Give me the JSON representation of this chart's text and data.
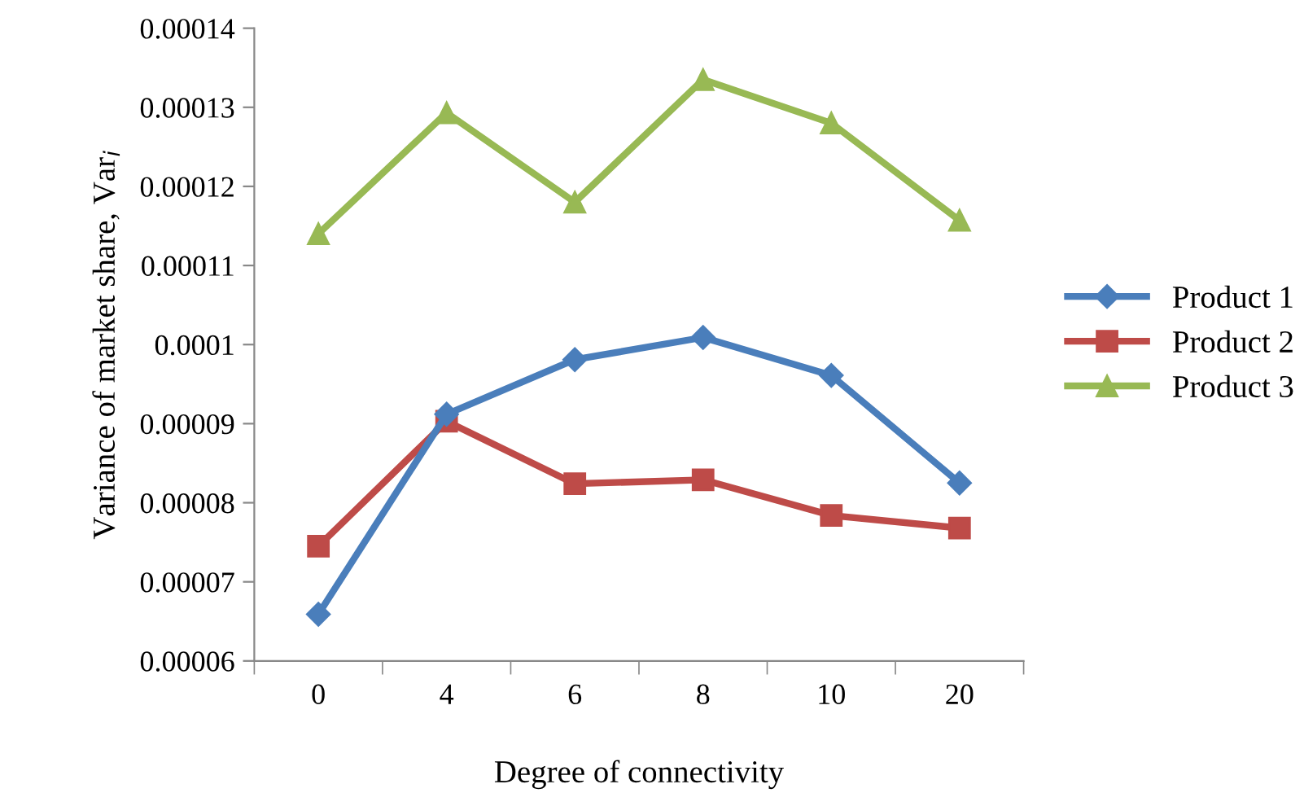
{
  "chart_data": {
    "type": "line",
    "xlabel": "Degree of connectivity",
    "ylabel": "Variance of market share, Var$_{i}$",
    "categories": [
      "0",
      "4",
      "6",
      "8",
      "10",
      "20"
    ],
    "series": [
      {
        "name": "Product 1",
        "color": "#4a7ebb",
        "marker": "diamond",
        "values": [
          6.59e-05,
          9.12e-05,
          9.81e-05,
          0.0001009,
          9.61e-05,
          8.25e-05
        ]
      },
      {
        "name": "Product 2",
        "color": "#be4b48",
        "marker": "square",
        "values": [
          7.45e-05,
          9.03e-05,
          8.24e-05,
          8.29e-05,
          7.84e-05,
          7.68e-05
        ]
      },
      {
        "name": "Product 3",
        "color": "#98b954",
        "marker": "triangle",
        "values": [
          0.000114,
          0.0001293,
          0.000118,
          0.0001335,
          0.000128,
          0.0001157
        ]
      }
    ],
    "ylim": [
      6e-05,
      0.00014
    ],
    "yticks": [
      {
        "value": 6e-05,
        "label": "0.00006"
      },
      {
        "value": 7e-05,
        "label": "0.00007"
      },
      {
        "value": 8e-05,
        "label": "0.00008"
      },
      {
        "value": 9e-05,
        "label": "0.00009"
      },
      {
        "value": 0.0001,
        "label": "0.0001"
      },
      {
        "value": 0.00011,
        "label": "0.00011"
      },
      {
        "value": 0.00012,
        "label": "0.00012"
      },
      {
        "value": 0.00013,
        "label": "0.00013"
      },
      {
        "value": 0.00014,
        "label": "0.00014"
      }
    ],
    "grid": false,
    "legend": "right"
  }
}
